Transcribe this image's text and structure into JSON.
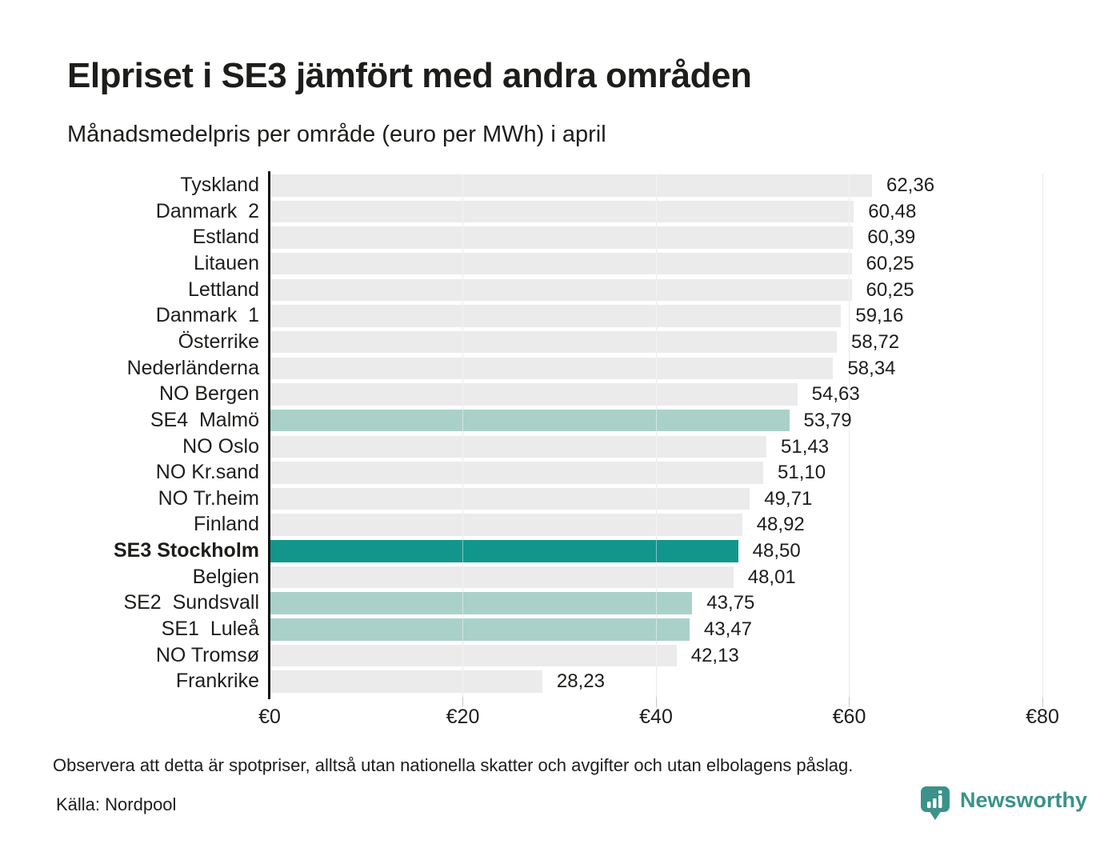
{
  "header": {
    "title": "Elpriset i SE3 jämfört med andra områden",
    "subtitle": "Månadsmedelpris per område (euro per MWh) i april"
  },
  "chart_data": {
    "type": "bar",
    "orientation": "horizontal",
    "title": "Elpriset i SE3 jämfört med andra områden",
    "subtitle": "Månadsmedelpris per område (euro per MWh) i april",
    "unit": "euro per MWh",
    "xlim": [
      0,
      80
    ],
    "grid": "vertical",
    "x_ticks": [
      {
        "value": 0,
        "label": "€0"
      },
      {
        "value": 20,
        "label": "€20"
      },
      {
        "value": 40,
        "label": "€40"
      },
      {
        "value": 60,
        "label": "€60"
      },
      {
        "value": 80,
        "label": "€80"
      }
    ],
    "rows": [
      {
        "label": "Tyskland",
        "value": 62.36,
        "display": "62,36",
        "style": "default",
        "bold": false
      },
      {
        "label": "Danmark  2",
        "value": 60.48,
        "display": "60,48",
        "style": "default",
        "bold": false
      },
      {
        "label": "Estland",
        "value": 60.39,
        "display": "60,39",
        "style": "default",
        "bold": false
      },
      {
        "label": "Litauen",
        "value": 60.25,
        "display": "60,25",
        "style": "default",
        "bold": false
      },
      {
        "label": "Lettland",
        "value": 60.25,
        "display": "60,25",
        "style": "default",
        "bold": false
      },
      {
        "label": "Danmark  1",
        "value": 59.16,
        "display": "59,16",
        "style": "default",
        "bold": false
      },
      {
        "label": "Österrike",
        "value": 58.72,
        "display": "58,72",
        "style": "default",
        "bold": false
      },
      {
        "label": "Nederländerna",
        "value": 58.34,
        "display": "58,34",
        "style": "default",
        "bold": false
      },
      {
        "label": "NO Bergen",
        "value": 54.63,
        "display": "54,63",
        "style": "default",
        "bold": false
      },
      {
        "label": "SE4  Malmö",
        "value": 53.79,
        "display": "53,79",
        "style": "se_light",
        "bold": false
      },
      {
        "label": "NO Oslo",
        "value": 51.43,
        "display": "51,43",
        "style": "default",
        "bold": false
      },
      {
        "label": "NO Kr.sand",
        "value": 51.1,
        "display": "51,10",
        "style": "default",
        "bold": false
      },
      {
        "label": "NO Tr.heim",
        "value": 49.71,
        "display": "49,71",
        "style": "default",
        "bold": false
      },
      {
        "label": "Finland",
        "value": 48.92,
        "display": "48,92",
        "style": "default",
        "bold": false
      },
      {
        "label": "SE3 Stockholm",
        "value": 48.5,
        "display": "48,50",
        "style": "se3",
        "bold": true
      },
      {
        "label": "Belgien",
        "value": 48.01,
        "display": "48,01",
        "style": "default",
        "bold": false
      },
      {
        "label": "SE2  Sundsvall",
        "value": 43.75,
        "display": "43,75",
        "style": "se_light",
        "bold": false
      },
      {
        "label": "SE1  Luleå",
        "value": 43.47,
        "display": "43,47",
        "style": "se_light",
        "bold": false
      },
      {
        "label": "NO Tromsø",
        "value": 42.13,
        "display": "42,13",
        "style": "default",
        "bold": false
      },
      {
        "label": "Frankrike",
        "value": 28.23,
        "display": "28,23",
        "style": "default",
        "bold": false
      }
    ],
    "colors": {
      "bar_default": "#ebebeb",
      "bar_se_light": "#a9d1c9",
      "bar_se3": "#12968b",
      "gridline": "#d9d9d9",
      "axis_line": "#111111",
      "text": "#1d1d1b"
    },
    "highlighted_row": "SE3 Stockholm"
  },
  "footer": {
    "note": "Observera att detta är spotpriser, alltså utan nationella skatter och avgifter och utan elbolagens påslag.",
    "source": "Källa: Nordpool"
  },
  "brand": {
    "name": "Newsworthy",
    "color": "#3b928a"
  }
}
